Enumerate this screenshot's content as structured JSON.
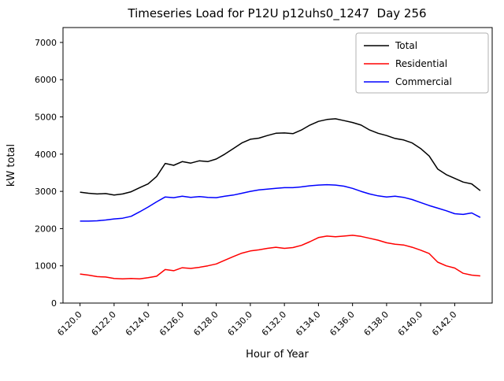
{
  "chart_data": {
    "type": "line",
    "title": "Timeseries Load for P12U p12uhs0_1247  Day 256",
    "xlabel": "Hour of Year",
    "ylabel": "kW total",
    "xlim": [
      6119.0,
      6144.2
    ],
    "ylim": [
      0,
      7400
    ],
    "grid": false,
    "legend_position": "upper right",
    "xtick_rotation": 45,
    "xticks": [
      6120,
      6122,
      6124,
      6126,
      6128,
      6130,
      6132,
      6134,
      6136,
      6138,
      6140,
      6142
    ],
    "xtick_labels": [
      "6120.0",
      "6122.0",
      "6124.0",
      "6126.0",
      "6128.0",
      "6130.0",
      "6132.0",
      "6134.0",
      "6136.0",
      "6138.0",
      "6140.0",
      "6142.0"
    ],
    "yticks": [
      0,
      1000,
      2000,
      3000,
      4000,
      5000,
      6000,
      7000
    ],
    "ytick_labels": [
      "0",
      "1000",
      "2000",
      "3000",
      "4000",
      "5000",
      "6000",
      "7000"
    ],
    "x": [
      6120.0,
      6120.5,
      6121.0,
      6121.5,
      6122.0,
      6122.5,
      6123.0,
      6123.5,
      6124.0,
      6124.5,
      6125.0,
      6125.5,
      6126.0,
      6126.5,
      6127.0,
      6127.5,
      6128.0,
      6128.5,
      6129.0,
      6129.5,
      6130.0,
      6130.5,
      6131.0,
      6131.5,
      6132.0,
      6132.5,
      6133.0,
      6133.5,
      6134.0,
      6134.5,
      6135.0,
      6135.5,
      6136.0,
      6136.5,
      6137.0,
      6137.5,
      6138.0,
      6138.5,
      6139.0,
      6139.5,
      6140.0,
      6140.5,
      6141.0,
      6141.5,
      6142.0,
      6142.5,
      6143.0,
      6143.5
    ],
    "series": [
      {
        "name": "Total",
        "color": "#000000",
        "values": [
          2980,
          2950,
          2930,
          2940,
          2900,
          2930,
          2990,
          3100,
          3200,
          3400,
          3750,
          3700,
          3800,
          3760,
          3820,
          3800,
          3870,
          4000,
          4150,
          4300,
          4400,
          4430,
          4500,
          4560,
          4570,
          4550,
          4650,
          4780,
          4880,
          4930,
          4950,
          4900,
          4850,
          4780,
          4650,
          4560,
          4500,
          4420,
          4380,
          4300,
          4150,
          3950,
          3600,
          3450,
          3350,
          3250,
          3200,
          3020
        ]
      },
      {
        "name": "Residential",
        "color": "#ff0000",
        "values": [
          780,
          750,
          710,
          700,
          660,
          650,
          660,
          650,
          680,
          720,
          900,
          870,
          950,
          930,
          960,
          1000,
          1050,
          1150,
          1250,
          1340,
          1400,
          1430,
          1470,
          1500,
          1470,
          1490,
          1550,
          1650,
          1760,
          1800,
          1780,
          1800,
          1820,
          1790,
          1740,
          1690,
          1620,
          1580,
          1560,
          1500,
          1420,
          1330,
          1100,
          1000,
          940,
          800,
          750,
          730
        ]
      },
      {
        "name": "Commercial",
        "color": "#0000ff",
        "values": [
          2200,
          2200,
          2210,
          2230,
          2260,
          2280,
          2330,
          2450,
          2580,
          2720,
          2850,
          2830,
          2870,
          2840,
          2860,
          2840,
          2830,
          2870,
          2900,
          2950,
          3000,
          3040,
          3060,
          3080,
          3100,
          3100,
          3120,
          3150,
          3170,
          3180,
          3170,
          3140,
          3080,
          3000,
          2930,
          2880,
          2850,
          2870,
          2840,
          2780,
          2700,
          2620,
          2550,
          2480,
          2400,
          2380,
          2420,
          2300
        ]
      }
    ]
  }
}
